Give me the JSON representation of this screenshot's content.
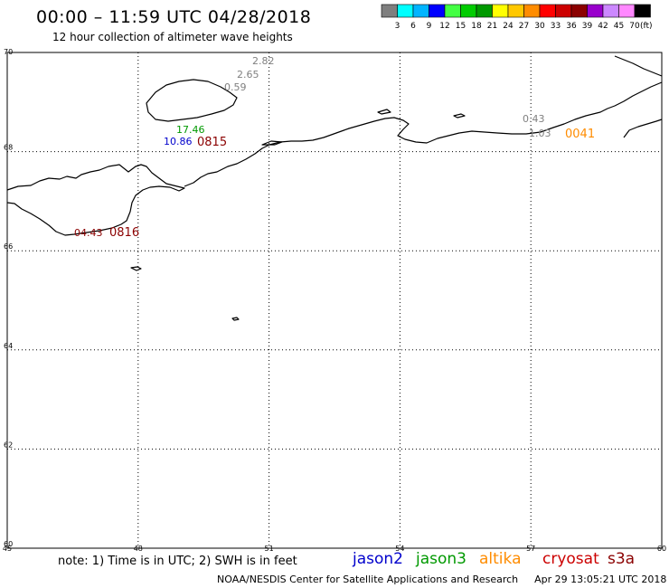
{
  "header": {
    "title": "00:00 – 11:59 UTC 04/28/2018",
    "subtitle": "12 hour collection of altimeter wave heights"
  },
  "scale": {
    "ticks": [
      "3",
      "6",
      "9",
      "12",
      "15",
      "18",
      "21",
      "24",
      "27",
      "30",
      "33",
      "36",
      "39",
      "42",
      "45",
      "70"
    ],
    "unit": "(ft)",
    "colors": [
      "#7f7f7f",
      "#00ffff",
      "#00b4ff",
      "#0000ff",
      "#44ff44",
      "#00cc00",
      "#009900",
      "#ffff00",
      "#ffc800",
      "#ff8c00",
      "#ff0000",
      "#cc0000",
      "#8b0000",
      "#9900cc",
      "#cc88ff",
      "#ff88ff",
      "#000000"
    ]
  },
  "axes": {
    "lat_labels": [
      "70",
      "68",
      "66",
      "64",
      "62",
      "60"
    ],
    "lon_labels": [
      "45",
      "48",
      "51",
      "54",
      "57",
      "60"
    ],
    "lat_range": [
      60,
      70
    ],
    "lon_range": [
      45,
      60
    ]
  },
  "observations": [
    {
      "text": "2.82",
      "color": "#808080"
    },
    {
      "text": "2.65",
      "color": "#808080"
    },
    {
      "text": "0.59",
      "color": "#808080"
    },
    {
      "text": "17.46",
      "color": "#009900"
    },
    {
      "text": "10.86",
      "color": "#0000cc"
    },
    {
      "text": "0815",
      "color": "#8b0000"
    },
    {
      "text": "0.43",
      "color": "#808080"
    },
    {
      "text": "1.03",
      "color": "#808080"
    },
    {
      "text": "0041",
      "color": "#ff8c00"
    },
    {
      "text": "04.43",
      "color": "#8b0000"
    },
    {
      "text": "0816",
      "color": "#8b0000"
    }
  ],
  "footer": {
    "note": "note: 1) Time is in UTC; 2) SWH is in feet",
    "satellites": [
      {
        "name": "jason2",
        "color": "#0000cc"
      },
      {
        "name": "jason3",
        "color": "#009900"
      },
      {
        "name": "altika",
        "color": "#ff8c00"
      },
      {
        "name": "cryosat",
        "color": "#cc0000"
      },
      {
        "name": "s3a",
        "color": "#8b0000"
      }
    ],
    "credit": "NOAA/NESDIS Center for Satellite Applications and Research",
    "timestamp": "Apr 29 13:05:21 UTC 2018"
  }
}
